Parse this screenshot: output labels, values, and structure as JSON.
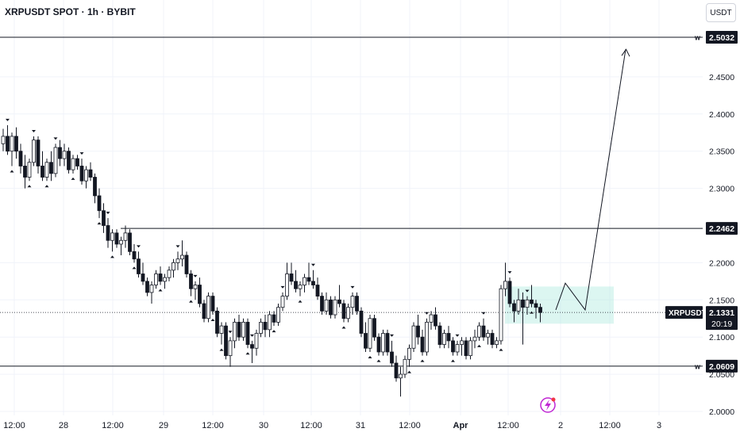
{
  "header": {
    "title": "XRPUSDT SPOT · 1h · BYBIT",
    "currency": "USDT"
  },
  "chart_data": {
    "type": "candlestick",
    "symbol": "XRPUSDT",
    "current_price": "2.1331",
    "countdown": "20:19",
    "y_ticks": [
      "2.4500",
      "2.4000",
      "2.3500",
      "2.3000",
      "2.2000",
      "2.1500",
      "2.1000",
      "2.0500",
      "2.0000"
    ],
    "ylim": [
      2.0,
      2.5032
    ],
    "x_ticks": [
      "12:00",
      "28",
      "12:00",
      "29",
      "12:00",
      "30",
      "12:00",
      "31",
      "12:00",
      "Apr",
      "12:00",
      "2",
      "12:00",
      "3"
    ],
    "levels": [
      {
        "price": "2.5032",
        "flag": "w"
      },
      {
        "price": "2.2462",
        "flag": ""
      },
      {
        "price": "2.0609",
        "flag": "w"
      }
    ],
    "zone": {
      "top": 2.168,
      "bottom": 2.118
    },
    "projection": [
      2.1365,
      2.1725,
      2.1365,
      2.487
    ],
    "candles": [
      [
        2.36,
        2.38,
        2.35,
        2.37
      ],
      [
        2.37,
        2.385,
        2.345,
        2.35
      ],
      [
        2.35,
        2.375,
        2.33,
        2.37
      ],
      [
        2.37,
        2.382,
        2.34,
        2.35
      ],
      [
        2.35,
        2.36,
        2.32,
        2.33
      ],
      [
        2.33,
        2.345,
        2.3,
        2.315
      ],
      [
        2.315,
        2.34,
        2.31,
        2.335
      ],
      [
        2.335,
        2.37,
        2.33,
        2.365
      ],
      [
        2.365,
        2.37,
        2.32,
        2.33
      ],
      [
        2.33,
        2.35,
        2.31,
        2.315
      ],
      [
        2.315,
        2.34,
        2.31,
        2.335
      ],
      [
        2.335,
        2.35,
        2.31,
        2.32
      ],
      [
        2.32,
        2.36,
        2.315,
        2.355
      ],
      [
        2.355,
        2.365,
        2.33,
        2.34
      ],
      [
        2.34,
        2.36,
        2.33,
        2.35
      ],
      [
        2.35,
        2.355,
        2.32,
        2.325
      ],
      [
        2.325,
        2.345,
        2.32,
        2.34
      ],
      [
        2.34,
        2.345,
        2.325,
        2.33
      ],
      [
        2.33,
        2.34,
        2.305,
        2.31
      ],
      [
        2.31,
        2.33,
        2.3,
        2.325
      ],
      [
        2.325,
        2.335,
        2.31,
        2.315
      ],
      [
        2.315,
        2.32,
        2.28,
        2.29
      ],
      [
        2.29,
        2.3,
        2.26,
        2.27
      ],
      [
        2.27,
        2.28,
        2.24,
        2.25
      ],
      [
        2.25,
        2.26,
        2.22,
        2.23
      ],
      [
        2.23,
        2.245,
        2.215,
        2.24
      ],
      [
        2.24,
        2.245,
        2.22,
        2.225
      ],
      [
        2.225,
        2.235,
        2.21,
        2.23
      ],
      [
        2.23,
        2.25,
        2.22,
        2.24
      ],
      [
        2.24,
        2.245,
        2.21,
        2.215
      ],
      [
        2.215,
        2.225,
        2.2,
        2.205
      ],
      [
        2.205,
        2.215,
        2.18,
        2.185
      ],
      [
        2.185,
        2.2,
        2.17,
        2.175
      ],
      [
        2.175,
        2.18,
        2.155,
        2.16
      ],
      [
        2.16,
        2.175,
        2.145,
        2.17
      ],
      [
        2.17,
        2.19,
        2.165,
        2.185
      ],
      [
        2.185,
        2.195,
        2.17,
        2.175
      ],
      [
        2.175,
        2.185,
        2.165,
        2.18
      ],
      [
        2.18,
        2.195,
        2.175,
        2.19
      ],
      [
        2.19,
        2.205,
        2.18,
        2.2
      ],
      [
        2.2,
        2.215,
        2.19,
        2.205
      ],
      [
        2.205,
        2.23,
        2.195,
        2.21
      ],
      [
        2.21,
        2.215,
        2.18,
        2.185
      ],
      [
        2.185,
        2.19,
        2.155,
        2.165
      ],
      [
        2.165,
        2.175,
        2.15,
        2.17
      ],
      [
        2.17,
        2.18,
        2.14,
        2.145
      ],
      [
        2.145,
        2.15,
        2.12,
        2.125
      ],
      [
        2.125,
        2.16,
        2.12,
        2.155
      ],
      [
        2.155,
        2.16,
        2.13,
        2.135
      ],
      [
        2.135,
        2.14,
        2.1,
        2.105
      ],
      [
        2.105,
        2.12,
        2.09,
        2.115
      ],
      [
        2.115,
        2.12,
        2.07,
        2.075
      ],
      [
        2.075,
        2.1,
        2.06,
        2.095
      ],
      [
        2.095,
        2.125,
        2.085,
        2.12
      ],
      [
        2.12,
        2.13,
        2.095,
        2.1
      ],
      [
        2.1,
        2.125,
        2.095,
        2.12
      ],
      [
        2.12,
        2.125,
        2.085,
        2.09
      ],
      [
        2.09,
        2.095,
        2.065,
        2.085
      ],
      [
        2.085,
        2.11,
        2.075,
        2.105
      ],
      [
        2.105,
        2.125,
        2.1,
        2.12
      ],
      [
        2.12,
        2.13,
        2.1,
        2.11
      ],
      [
        2.11,
        2.135,
        2.1,
        2.13
      ],
      [
        2.13,
        2.135,
        2.115,
        2.12
      ],
      [
        2.12,
        2.145,
        2.115,
        2.14
      ],
      [
        2.14,
        2.16,
        2.135,
        2.155
      ],
      [
        2.155,
        2.2,
        2.15,
        2.185
      ],
      [
        2.185,
        2.2,
        2.17,
        2.175
      ],
      [
        2.175,
        2.19,
        2.16,
        2.165
      ],
      [
        2.165,
        2.175,
        2.155,
        2.17
      ],
      [
        2.17,
        2.185,
        2.16,
        2.18
      ],
      [
        2.18,
        2.2,
        2.17,
        2.175
      ],
      [
        2.175,
        2.19,
        2.165,
        2.17
      ],
      [
        2.17,
        2.18,
        2.15,
        2.155
      ],
      [
        2.155,
        2.16,
        2.13,
        2.135
      ],
      [
        2.135,
        2.16,
        2.13,
        2.15
      ],
      [
        2.15,
        2.155,
        2.125,
        2.13
      ],
      [
        2.13,
        2.155,
        2.125,
        2.15
      ],
      [
        2.15,
        2.17,
        2.14,
        2.145
      ],
      [
        2.145,
        2.15,
        2.12,
        2.125
      ],
      [
        2.125,
        2.145,
        2.12,
        2.14
      ],
      [
        2.14,
        2.16,
        2.13,
        2.155
      ],
      [
        2.155,
        2.16,
        2.13,
        2.135
      ],
      [
        2.135,
        2.14,
        2.1,
        2.105
      ],
      [
        2.105,
        2.12,
        2.08,
        2.085
      ],
      [
        2.085,
        2.13,
        2.08,
        2.125
      ],
      [
        2.125,
        2.13,
        2.095,
        2.1
      ],
      [
        2.1,
        2.105,
        2.075,
        2.08
      ],
      [
        2.08,
        2.11,
        2.075,
        2.105
      ],
      [
        2.105,
        2.11,
        2.075,
        2.08
      ],
      [
        2.08,
        2.095,
        2.06,
        2.065
      ],
      [
        2.065,
        2.075,
        2.04,
        2.045
      ],
      [
        2.045,
        2.06,
        2.02,
        2.05
      ],
      [
        2.05,
        2.075,
        2.045,
        2.07
      ],
      [
        2.07,
        2.09,
        2.06,
        2.085
      ],
      [
        2.085,
        2.12,
        2.08,
        2.115
      ],
      [
        2.115,
        2.13,
        2.09,
        2.1
      ],
      [
        2.1,
        2.11,
        2.075,
        2.08
      ],
      [
        2.08,
        2.125,
        2.075,
        2.12
      ],
      [
        2.12,
        2.135,
        2.11,
        2.13
      ],
      [
        2.13,
        2.14,
        2.11,
        2.115
      ],
      [
        2.115,
        2.12,
        2.085,
        2.09
      ],
      [
        2.09,
        2.11,
        2.085,
        2.105
      ],
      [
        2.105,
        2.115,
        2.085,
        2.095
      ],
      [
        2.095,
        2.1,
        2.075,
        2.08
      ],
      [
        2.08,
        2.095,
        2.075,
        2.09
      ],
      [
        2.09,
        2.1,
        2.075,
        2.095
      ],
      [
        2.095,
        2.1,
        2.07,
        2.075
      ],
      [
        2.075,
        2.1,
        2.07,
        2.095
      ],
      [
        2.095,
        2.11,
        2.085,
        2.1
      ],
      [
        2.1,
        2.12,
        2.095,
        2.115
      ],
      [
        2.115,
        2.125,
        2.095,
        2.1
      ],
      [
        2.1,
        2.11,
        2.09,
        2.105
      ],
      [
        2.105,
        2.11,
        2.085,
        2.09
      ],
      [
        2.09,
        2.1,
        2.085,
        2.095
      ],
      [
        2.095,
        2.17,
        2.09,
        2.165
      ],
      [
        2.165,
        2.2,
        2.155,
        2.175
      ],
      [
        2.175,
        2.18,
        2.14,
        2.145
      ],
      [
        2.145,
        2.15,
        2.12,
        2.135
      ],
      [
        2.135,
        2.165,
        2.13,
        2.15
      ],
      [
        2.15,
        2.16,
        2.09,
        2.14
      ],
      [
        2.14,
        2.155,
        2.13,
        2.15
      ],
      [
        2.15,
        2.17,
        2.14,
        2.145
      ],
      [
        2.145,
        2.15,
        2.125,
        2.14
      ],
      [
        2.14,
        2.145,
        2.12,
        2.133
      ]
    ],
    "down_markers": [
      1,
      7,
      12,
      18,
      24,
      31,
      40,
      44,
      52,
      57,
      64,
      71,
      80,
      89,
      97,
      104,
      110,
      116,
      120
    ],
    "up_markers": [
      2,
      6,
      10,
      16,
      22,
      25,
      30,
      36,
      43,
      48,
      50,
      56,
      62,
      68,
      78,
      84,
      86,
      93,
      96,
      103,
      109,
      114,
      121
    ]
  }
}
